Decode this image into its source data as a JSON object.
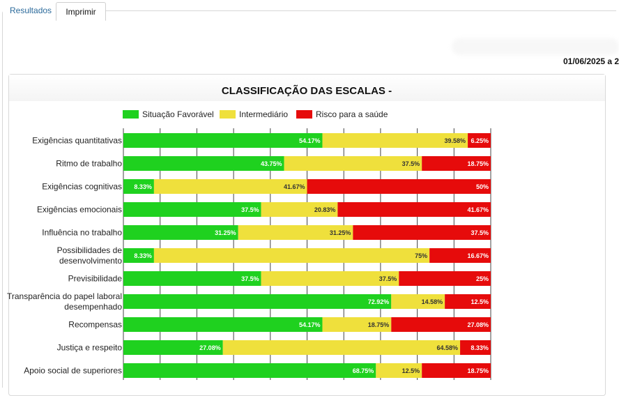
{
  "tabs": [
    {
      "label": "Resultados"
    },
    {
      "label": "Imprimir"
    }
  ],
  "date_range": "01/06/2025 a 2",
  "chart_data": {
    "type": "bar",
    "orientation": "horizontal",
    "stacked": true,
    "title": "CLASSIFICAÇÃO DAS ESCALAS -",
    "legend_position": "top",
    "xlim": [
      0,
      100
    ],
    "grid": true,
    "categories": [
      [
        "Exigências quantitativas"
      ],
      [
        "Ritmo de trabalho"
      ],
      [
        "Exigências cognitivas"
      ],
      [
        "Exigências emocionais"
      ],
      [
        "Influência no trabalho"
      ],
      [
        "Possibilidades de",
        "desenvolvimento"
      ],
      [
        "Previsibilidade"
      ],
      [
        "Transparência do papel laboral",
        "desempenhado"
      ],
      [
        "Recompensas"
      ],
      [
        "Justiça e respeito"
      ],
      [
        "Apoio social de superiores"
      ]
    ],
    "series": [
      {
        "name": "Situação Favorável",
        "color": "#1fd11f",
        "label_color": "#ffffff",
        "values": [
          54.17,
          43.75,
          8.33,
          37.5,
          31.25,
          8.33,
          37.5,
          72.92,
          54.17,
          27.08,
          68.75
        ],
        "labels": [
          "54.17%",
          "43.75%",
          "8.33%",
          "37.5%",
          "31.25%",
          "8.33%",
          "37.5%",
          "72.92%",
          "54.17%",
          "27.08%",
          "68.75%"
        ]
      },
      {
        "name": "Intermediário",
        "color": "#efe03c",
        "label_color": "#333333",
        "values": [
          39.58,
          37.5,
          41.67,
          20.83,
          31.25,
          75,
          37.5,
          14.58,
          18.75,
          64.58,
          12.5
        ],
        "labels": [
          "39.58%",
          "37.5%",
          "41.67%",
          "20.83%",
          "31.25%",
          "75%",
          "37.5%",
          "14.58%",
          "18.75%",
          "64.58%",
          "12.5%"
        ]
      },
      {
        "name": "Risco para a saúde",
        "color": "#e60b0b",
        "label_color": "#ffffff",
        "values": [
          6.25,
          18.75,
          50,
          41.67,
          37.5,
          16.67,
          25,
          12.5,
          27.08,
          8.33,
          18.75
        ],
        "labels": [
          "6.25%",
          "18.75%",
          "50%",
          "41.67%",
          "37.5%",
          "16.67%",
          "25%",
          "12.5%",
          "27.08%",
          "8.33%",
          "18.75%"
        ]
      }
    ]
  }
}
